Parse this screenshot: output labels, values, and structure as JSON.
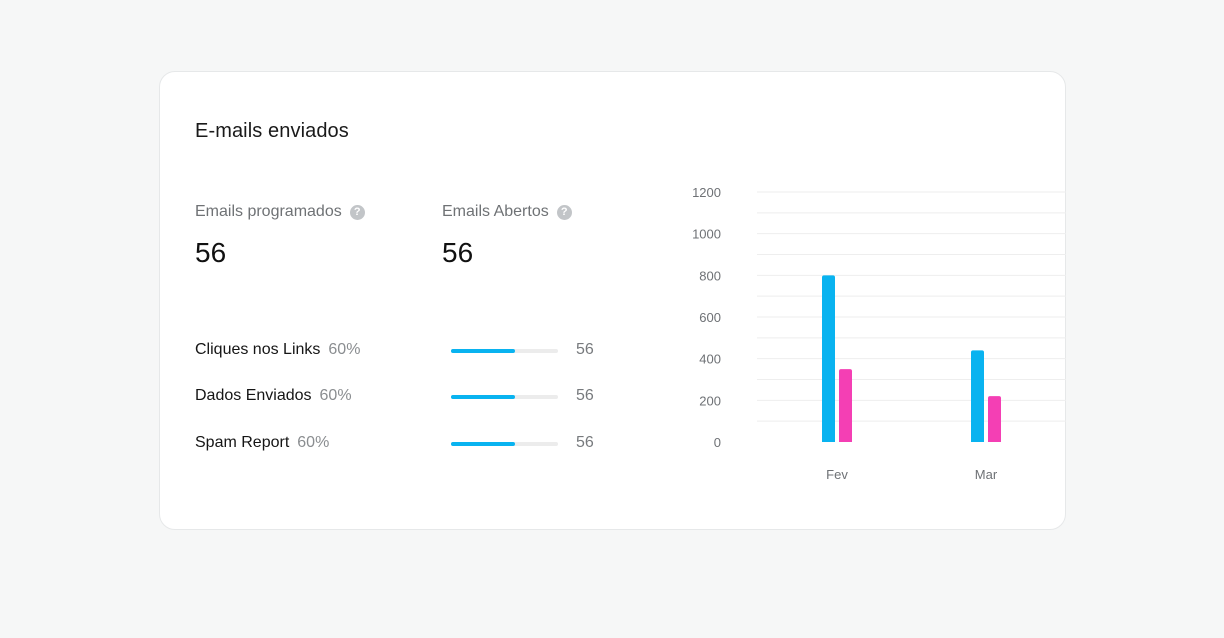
{
  "card": {
    "title": "E-mails enviados"
  },
  "stats": [
    {
      "label": "Emails programados",
      "value": "56",
      "help_icon": "question-circle-icon"
    },
    {
      "label": "Emails Abertos",
      "value": "56",
      "help_icon": "question-circle-icon"
    }
  ],
  "metrics": [
    {
      "label": "Cliques nos Links",
      "percent_text": "60%",
      "progress": 0.6,
      "count": "56"
    },
    {
      "label": "Dados Enviados",
      "percent_text": "60%",
      "progress": 0.6,
      "count": "56"
    },
    {
      "label": "Spam Report",
      "percent_text": "60%",
      "progress": 0.6,
      "count": "56"
    }
  ],
  "colors": {
    "series_a": "#09b3f0",
    "series_b": "#f43fb4",
    "progress_track": "#ececec"
  },
  "chart_data": {
    "type": "bar",
    "categories": [
      "Fev",
      "Mar"
    ],
    "series": [
      {
        "values": [
          800,
          440
        ],
        "color": "#09b3f0"
      },
      {
        "values": [
          350,
          220
        ],
        "color": "#f43fb4"
      }
    ],
    "yticks": [
      "0",
      "200",
      "400",
      "600",
      "800",
      "1000",
      "1200"
    ],
    "ylim": [
      0,
      1200
    ],
    "grid": true,
    "legend": false
  }
}
